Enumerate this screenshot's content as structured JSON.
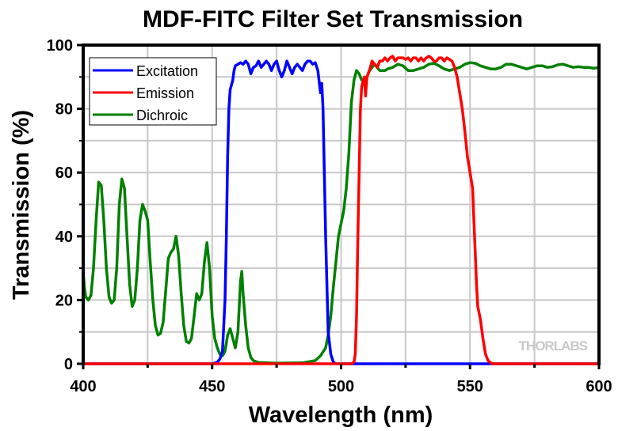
{
  "chart_data": {
    "type": "line",
    "title": "MDF-FITC Filter Set Transmission",
    "xlabel": "Wavelength (nm)",
    "ylabel": "Transmission (%)",
    "xlim": [
      400,
      600
    ],
    "ylim": [
      0,
      100
    ],
    "xticks": [
      "400",
      "450",
      "500",
      "550",
      "600"
    ],
    "yticks": [
      "0",
      "20",
      "40",
      "60",
      "80",
      "100"
    ],
    "x_minor_step": 25,
    "y_minor_step": 10,
    "grid": true,
    "legend_position": "top-left",
    "watermark": "THORLABS",
    "series": [
      {
        "name": "Excitation",
        "color": "#0000ff",
        "points": [
          [
            400,
            0
          ],
          [
            450,
            0
          ],
          [
            452,
            0.5
          ],
          [
            453,
            1.5
          ],
          [
            454,
            4
          ],
          [
            455,
            20
          ],
          [
            455.5,
            40
          ],
          [
            456,
            65
          ],
          [
            456.5,
            80
          ],
          [
            457,
            86
          ],
          [
            458,
            89
          ],
          [
            458.5,
            92
          ],
          [
            459,
            93.5
          ],
          [
            460,
            94
          ],
          [
            461,
            94.5
          ],
          [
            462,
            94
          ],
          [
            463,
            95
          ],
          [
            464,
            94
          ],
          [
            465,
            91
          ],
          [
            466,
            93
          ],
          [
            467,
            93.5
          ],
          [
            468,
            95
          ],
          [
            469,
            93
          ],
          [
            470,
            94
          ],
          [
            471,
            95
          ],
          [
            472,
            94
          ],
          [
            473,
            92
          ],
          [
            474,
            94
          ],
          [
            475,
            95
          ],
          [
            476,
            92
          ],
          [
            477,
            90
          ],
          [
            478,
            92
          ],
          [
            479,
            95
          ],
          [
            480,
            93
          ],
          [
            481,
            91
          ],
          [
            482,
            93
          ],
          [
            483,
            94
          ],
          [
            484,
            93
          ],
          [
            485,
            92
          ],
          [
            486,
            94
          ],
          [
            487,
            95
          ],
          [
            488,
            95
          ],
          [
            489,
            94
          ],
          [
            490,
            94.5
          ],
          [
            491,
            92
          ],
          [
            492,
            85
          ],
          [
            492.5,
            88
          ],
          [
            493,
            80
          ],
          [
            494,
            40
          ],
          [
            495,
            10
          ],
          [
            496,
            3
          ],
          [
            497,
            0.5
          ],
          [
            498,
            0
          ],
          [
            600,
            0
          ]
        ]
      },
      {
        "name": "Emission",
        "color": "#ff0000",
        "points": [
          [
            400,
            0
          ],
          [
            504,
            0
          ],
          [
            505,
            0.5
          ],
          [
            505.5,
            3
          ],
          [
            506,
            15
          ],
          [
            506.5,
            40
          ],
          [
            507,
            60
          ],
          [
            507.5,
            80
          ],
          [
            508,
            87
          ],
          [
            509,
            90
          ],
          [
            509.5,
            84
          ],
          [
            510,
            90
          ],
          [
            511,
            92
          ],
          [
            512,
            95
          ],
          [
            513,
            94
          ],
          [
            514,
            93
          ],
          [
            515,
            95
          ],
          [
            516,
            95
          ],
          [
            517,
            96
          ],
          [
            518,
            95
          ],
          [
            519,
            96
          ],
          [
            520,
            96.5
          ],
          [
            521,
            95
          ],
          [
            522,
            96
          ],
          [
            523,
            96
          ],
          [
            524,
            96
          ],
          [
            525,
            95.5
          ],
          [
            526,
            96
          ],
          [
            527,
            95
          ],
          [
            528,
            96
          ],
          [
            529,
            96
          ],
          [
            530,
            95
          ],
          [
            531,
            96
          ],
          [
            532,
            95
          ],
          [
            533,
            96
          ],
          [
            534,
            96.5
          ],
          [
            535,
            96
          ],
          [
            536,
            95
          ],
          [
            537,
            95
          ],
          [
            538,
            96
          ],
          [
            539,
            96
          ],
          [
            540,
            95
          ],
          [
            541,
            96
          ],
          [
            542,
            95.5
          ],
          [
            543,
            95
          ],
          [
            544,
            93
          ],
          [
            545,
            90
          ],
          [
            546,
            85
          ],
          [
            547,
            80
          ],
          [
            548,
            73
          ],
          [
            549,
            65
          ],
          [
            550,
            60
          ],
          [
            551,
            55
          ],
          [
            551.5,
            45
          ],
          [
            552,
            35
          ],
          [
            552.5,
            25
          ],
          [
            553,
            18
          ],
          [
            554,
            14
          ],
          [
            555,
            8
          ],
          [
            556,
            3
          ],
          [
            557,
            1
          ],
          [
            558,
            0.3
          ],
          [
            559,
            0
          ],
          [
            600,
            0
          ]
        ]
      },
      {
        "name": "Dichroic",
        "color": "#008000",
        "points": [
          [
            400,
            29
          ],
          [
            400.5,
            24
          ],
          [
            401,
            21
          ],
          [
            402,
            20
          ],
          [
            403,
            21.5
          ],
          [
            404,
            30
          ],
          [
            405,
            45
          ],
          [
            406,
            57
          ],
          [
            407,
            56
          ],
          [
            408,
            45
          ],
          [
            409,
            30
          ],
          [
            410,
            21
          ],
          [
            411,
            19
          ],
          [
            412,
            20
          ],
          [
            413,
            30
          ],
          [
            414,
            50
          ],
          [
            415,
            58
          ],
          [
            416,
            55
          ],
          [
            417,
            40
          ],
          [
            418,
            25
          ],
          [
            419,
            18
          ],
          [
            420,
            20
          ],
          [
            421,
            30
          ],
          [
            422,
            45
          ],
          [
            423,
            50
          ],
          [
            424,
            48
          ],
          [
            425,
            45
          ],
          [
            426,
            32
          ],
          [
            427,
            20
          ],
          [
            428,
            12
          ],
          [
            429,
            9
          ],
          [
            430,
            9.5
          ],
          [
            431,
            13
          ],
          [
            432,
            23
          ],
          [
            433,
            33
          ],
          [
            434,
            35
          ],
          [
            435,
            36
          ],
          [
            436,
            40
          ],
          [
            437,
            34
          ],
          [
            438,
            22
          ],
          [
            439,
            12
          ],
          [
            440,
            7
          ],
          [
            441,
            6.5
          ],
          [
            442,
            8
          ],
          [
            443,
            15
          ],
          [
            444,
            22
          ],
          [
            445,
            20
          ],
          [
            446,
            22
          ],
          [
            447,
            32
          ],
          [
            448,
            38
          ],
          [
            449,
            30
          ],
          [
            450,
            15
          ],
          [
            451,
            8
          ],
          [
            452,
            5
          ],
          [
            453,
            3
          ],
          [
            454,
            2.5
          ],
          [
            455,
            4
          ],
          [
            456,
            9
          ],
          [
            457,
            11
          ],
          [
            458,
            8
          ],
          [
            459,
            5
          ],
          [
            460,
            10
          ],
          [
            461,
            26
          ],
          [
            461.5,
            29
          ],
          [
            462,
            22
          ],
          [
            463,
            12
          ],
          [
            464,
            5
          ],
          [
            465,
            2
          ],
          [
            466,
            1
          ],
          [
            468,
            0.4
          ],
          [
            475,
            0.2
          ],
          [
            485,
            0.3
          ],
          [
            490,
            1
          ],
          [
            492,
            2.5
          ],
          [
            494,
            5
          ],
          [
            495,
            9
          ],
          [
            496,
            15
          ],
          [
            497,
            24
          ],
          [
            498,
            32
          ],
          [
            499,
            40
          ],
          [
            500,
            44
          ],
          [
            501,
            48
          ],
          [
            502,
            55
          ],
          [
            503,
            66
          ],
          [
            504,
            82
          ],
          [
            505,
            89
          ],
          [
            506,
            92
          ],
          [
            507,
            91
          ],
          [
            508,
            89
          ],
          [
            509,
            88.5
          ],
          [
            510,
            90
          ],
          [
            511,
            92
          ],
          [
            512,
            93
          ],
          [
            513,
            94
          ],
          [
            514,
            93
          ],
          [
            515,
            92
          ],
          [
            516,
            92
          ],
          [
            517,
            92
          ],
          [
            518,
            92.5
          ],
          [
            520,
            93
          ],
          [
            522,
            94
          ],
          [
            524,
            93.5
          ],
          [
            526,
            92
          ],
          [
            528,
            92
          ],
          [
            530,
            92.5
          ],
          [
            532,
            93
          ],
          [
            534,
            94
          ],
          [
            536,
            94.3
          ],
          [
            538,
            93.5
          ],
          [
            540,
            92.5
          ],
          [
            542,
            92
          ],
          [
            544,
            92.5
          ],
          [
            546,
            93
          ],
          [
            548,
            94
          ],
          [
            550,
            94.5
          ],
          [
            552,
            94.3
          ],
          [
            554,
            93.5
          ],
          [
            556,
            93
          ],
          [
            558,
            92.5
          ],
          [
            560,
            92.5
          ],
          [
            562,
            93
          ],
          [
            564,
            94
          ],
          [
            566,
            94
          ],
          [
            568,
            93.5
          ],
          [
            570,
            93
          ],
          [
            572,
            92.5
          ],
          [
            574,
            93
          ],
          [
            576,
            93.5
          ],
          [
            578,
            93.5
          ],
          [
            580,
            93
          ],
          [
            582,
            93.2
          ],
          [
            584,
            93.8
          ],
          [
            586,
            94
          ],
          [
            588,
            93.5
          ],
          [
            590,
            93
          ],
          [
            592,
            93.2
          ],
          [
            594,
            93
          ],
          [
            596,
            93
          ],
          [
            598,
            92.7
          ],
          [
            600,
            93
          ]
        ]
      }
    ]
  }
}
